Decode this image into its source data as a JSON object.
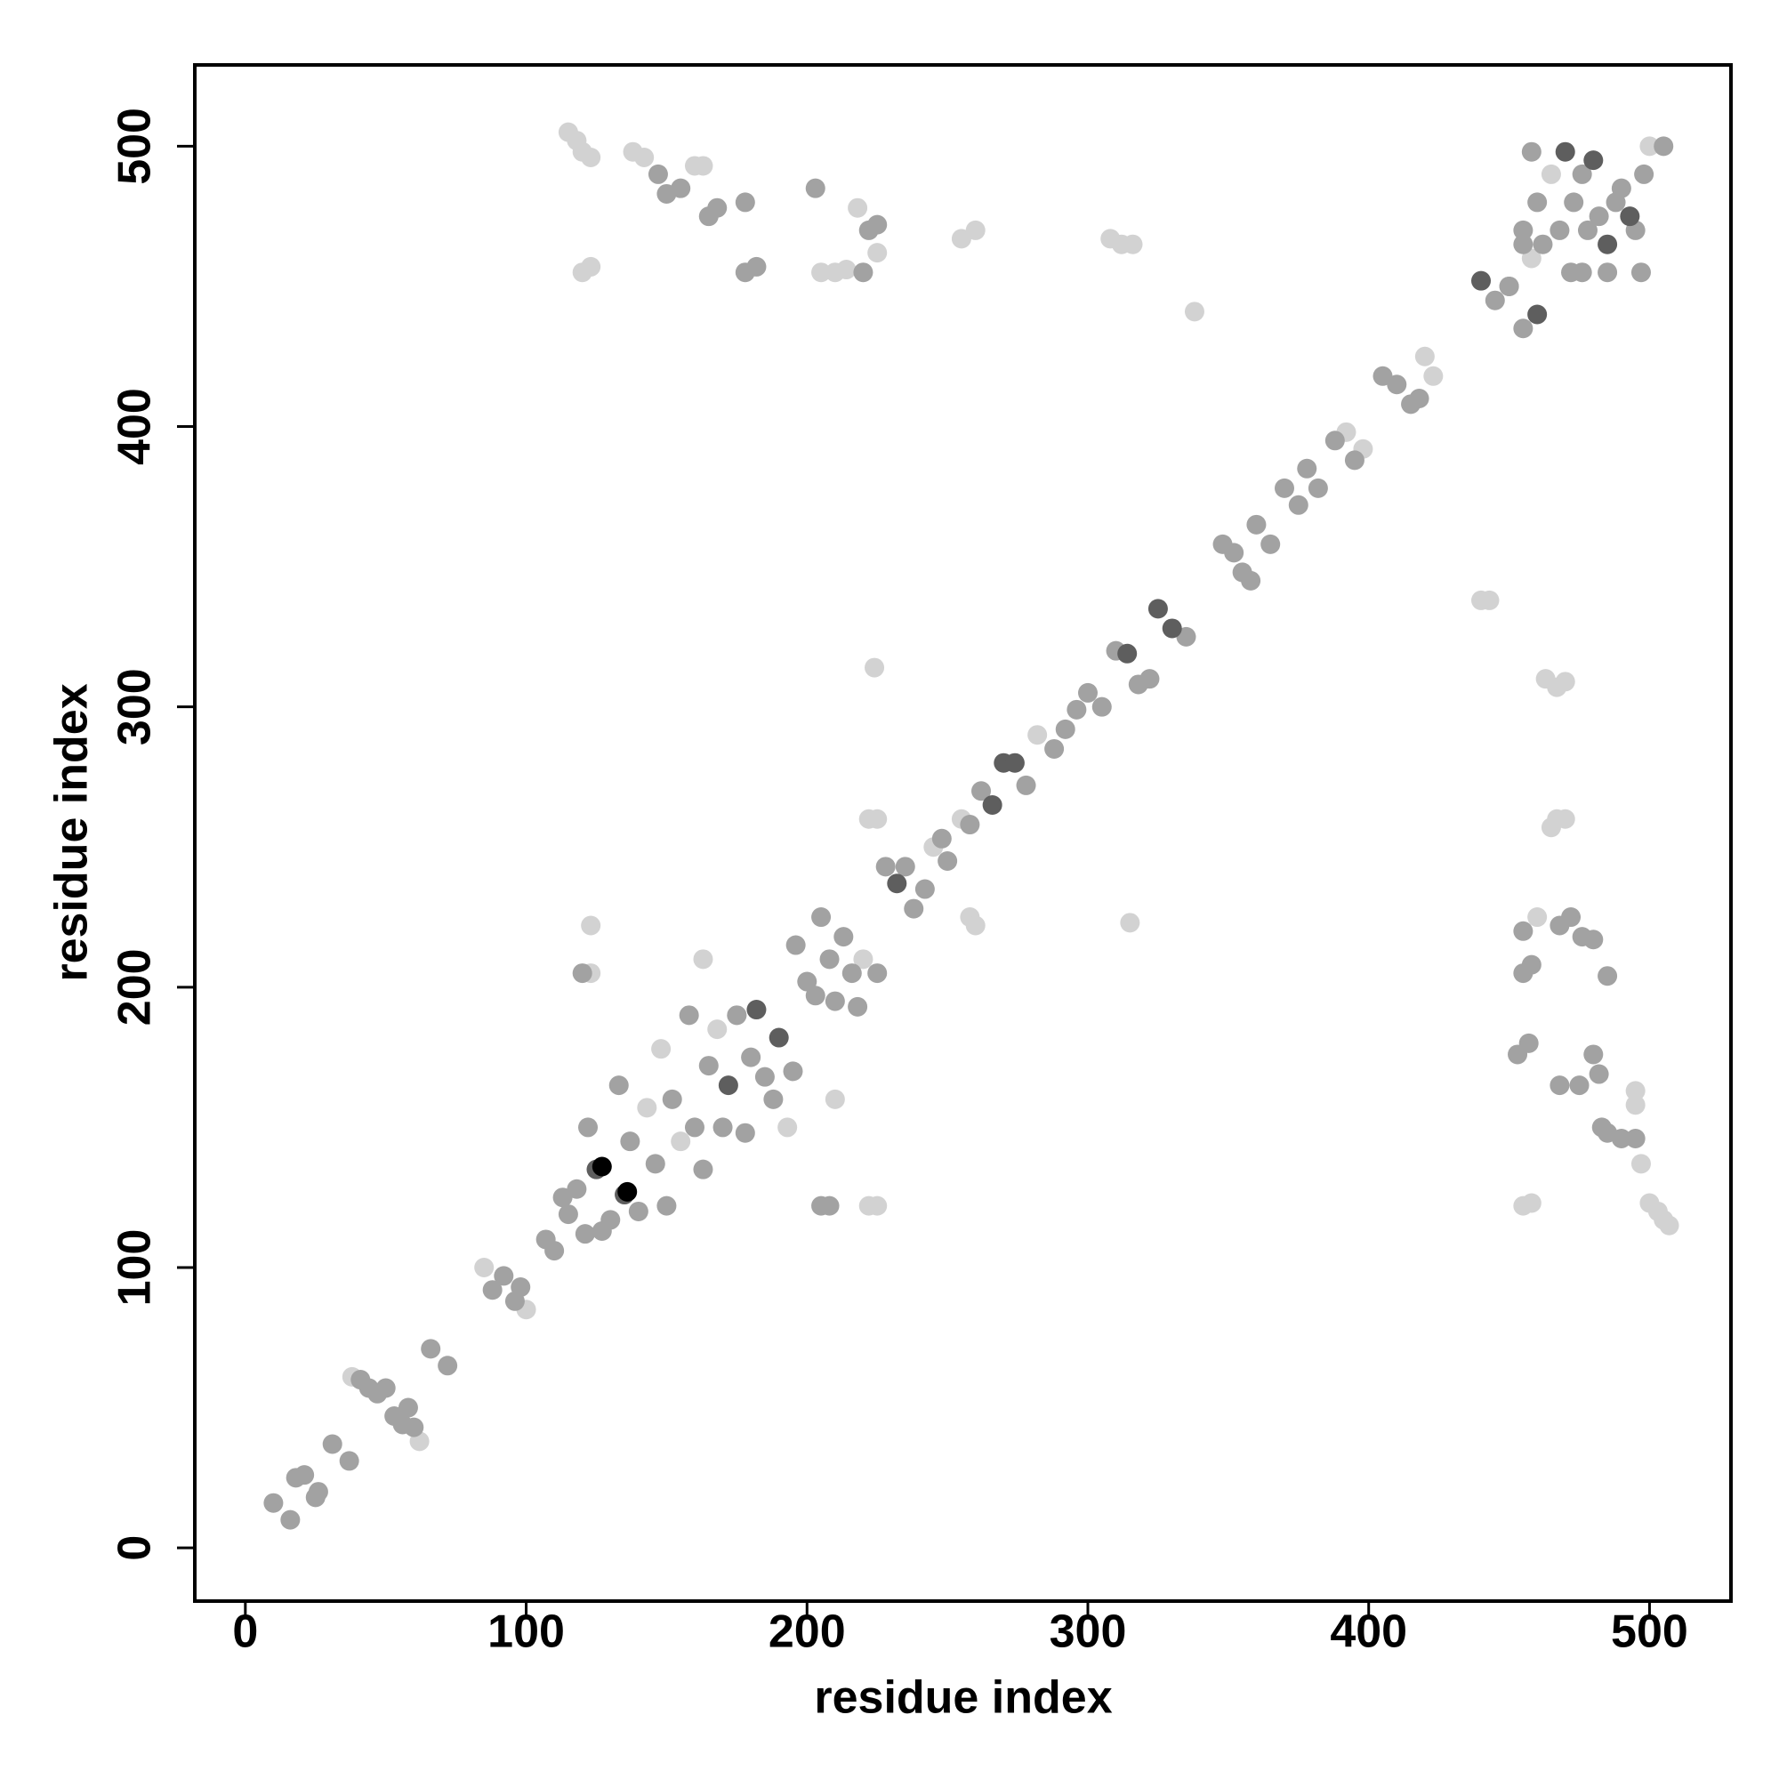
{
  "chart_data": {
    "type": "scatter",
    "xlabel": "residue index",
    "ylabel": "residue index",
    "xlim": [
      -18,
      529
    ],
    "ylim": [
      -19,
      529
    ],
    "xticks": [
      0,
      100,
      200,
      300,
      400,
      500
    ],
    "yticks": [
      0,
      100,
      200,
      300,
      400,
      500
    ],
    "series": [
      {
        "color": "#d2d2d2",
        "x": [
          115,
          118,
          120,
          123,
          120,
          123,
          138,
          142,
          160,
          163,
          255,
          260,
          308,
          312,
          316,
          338,
          224,
          225,
          222,
          258,
          260,
          315,
          123,
          123,
          222,
          225,
          210,
          163,
          440,
          443,
          463,
          467,
          470,
          467,
          470,
          465,
          460,
          495,
          495,
          497,
          500,
          503,
          505,
          507,
          455,
          458,
          218,
          225,
          205,
          210,
          214,
          62,
          38,
          85,
          100,
          148,
          155,
          175,
          245,
          255,
          282,
          392,
          398,
          420,
          423,
          465,
          500,
          458,
          143,
          168,
          193,
          220
        ],
        "y": [
          505,
          502,
          498,
          496,
          455,
          457,
          498,
          496,
          493,
          493,
          467,
          470,
          467,
          465,
          465,
          441,
          314,
          260,
          260,
          225,
          222,
          223,
          222,
          205,
          122,
          122,
          160,
          210,
          338,
          338,
          310,
          307,
          309,
          260,
          260,
          257,
          225,
          163,
          158,
          137,
          123,
          120,
          117,
          115,
          122,
          123,
          478,
          462,
          455,
          455,
          456,
          38,
          61,
          100,
          85,
          178,
          145,
          190,
          250,
          260,
          290,
          398,
          392,
          425,
          418,
          490,
          500,
          460,
          157,
          185,
          150,
          210
        ]
      },
      {
        "color": "#a2a2a2",
        "x": [
          10,
          16,
          18,
          21,
          25,
          26,
          31,
          37,
          41,
          44,
          47,
          50,
          53,
          56,
          58,
          60,
          66,
          72,
          88,
          92,
          96,
          98,
          107,
          110,
          113,
          115,
          118,
          121,
          122,
          127,
          130,
          133,
          137,
          140,
          146,
          150,
          152,
          158,
          160,
          163,
          165,
          170,
          175,
          178,
          180,
          185,
          188,
          195,
          196,
          200,
          203,
          205,
          208,
          210,
          213,
          216,
          218,
          225,
          228,
          235,
          238,
          242,
          248,
          250,
          258,
          262,
          278,
          288,
          292,
          296,
          300,
          305,
          310,
          318,
          322,
          335,
          348,
          352,
          355,
          358,
          360,
          365,
          370,
          375,
          378,
          382,
          388,
          395,
          405,
          410,
          415,
          418,
          445,
          450,
          455,
          462,
          468,
          473,
          476,
          478,
          482,
          488,
          490,
          495,
          497,
          498,
          505,
          458,
          455,
          460,
          472,
          476,
          485,
          450,
          455,
          147,
          150,
          155,
          165,
          168,
          178,
          178,
          182,
          203,
          222,
          225,
          220,
          205,
          208,
          120,
          468,
          472,
          476,
          480,
          485,
          455,
          455,
          458,
          453,
          457,
          468,
          475,
          480,
          482,
          483,
          485,
          490,
          495
        ],
        "y": [
          16,
          10,
          25,
          26,
          18,
          20,
          37,
          31,
          60,
          57,
          55,
          57,
          47,
          44,
          50,
          43,
          71,
          65,
          92,
          97,
          88,
          93,
          110,
          106,
          125,
          119,
          128,
          112,
          150,
          113,
          117,
          165,
          145,
          120,
          137,
          122,
          160,
          190,
          150,
          135,
          172,
          150,
          190,
          148,
          175,
          168,
          160,
          170,
          215,
          202,
          197,
          225,
          210,
          195,
          218,
          205,
          193,
          205,
          243,
          243,
          228,
          235,
          253,
          245,
          258,
          270,
          272,
          285,
          292,
          299,
          305,
          300,
          320,
          308,
          310,
          325,
          358,
          355,
          348,
          345,
          365,
          358,
          378,
          372,
          385,
          378,
          395,
          388,
          418,
          415,
          408,
          410,
          445,
          450,
          435,
          465,
          470,
          480,
          490,
          470,
          475,
          480,
          485,
          470,
          455,
          490,
          500,
          498,
          470,
          480,
          455,
          455,
          455,
          450,
          465,
          490,
          483,
          485,
          475,
          478,
          480,
          455,
          457,
          485,
          470,
          472,
          455,
          122,
          122,
          205,
          222,
          225,
          218,
          217,
          204,
          220,
          205,
          208,
          176,
          180,
          165,
          165,
          176,
          169,
          150,
          148,
          146,
          146
        ]
      },
      {
        "color": "#5e5e5e",
        "x": [
          125,
          135,
          190,
          270,
          274,
          314,
          325,
          330,
          266,
          440,
          460,
          470,
          480,
          485,
          493,
          232,
          182,
          172
        ],
        "y": [
          135,
          126,
          182,
          280,
          280,
          319,
          335,
          328,
          265,
          452,
          440,
          498,
          495,
          465,
          475,
          237,
          192,
          165
        ]
      },
      {
        "color": "#000000",
        "x": [
          127,
          136
        ],
        "y": [
          136,
          127
        ]
      }
    ]
  }
}
